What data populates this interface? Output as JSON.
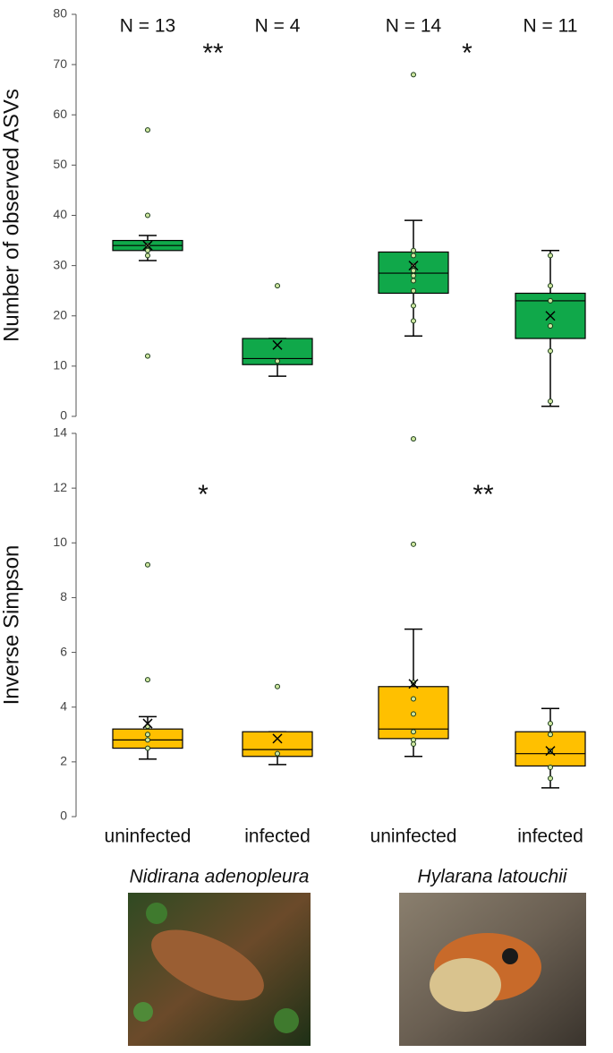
{
  "chart_data": [
    {
      "type": "box",
      "y_label": "Number of observed ASVs",
      "color": "#10a84a",
      "ylim": [
        0,
        80
      ],
      "yticks": [
        0,
        10,
        20,
        30,
        40,
        50,
        60,
        70,
        80
      ],
      "n_labels": [
        "N = 13",
        "N = 4",
        "N = 14",
        "N = 11"
      ],
      "significance": [
        "**",
        "*"
      ],
      "boxes": [
        {
          "whislo": 31,
          "q1": 33,
          "med": 34,
          "q3": 35,
          "whishi": 36,
          "mean": 34,
          "points": [
            57,
            40,
            34,
            33,
            32,
            12
          ]
        },
        {
          "whislo": 8,
          "q1": 10.3,
          "med": 11.5,
          "q3": 15.5,
          "whishi": 15.5,
          "mean": 14.2,
          "points": [
            26,
            11
          ]
        },
        {
          "whislo": 16,
          "q1": 24.5,
          "med": 28.5,
          "q3": 32.7,
          "whishi": 39,
          "mean": 30,
          "points": [
            68,
            33,
            32,
            30,
            29,
            28,
            27,
            25,
            22,
            19
          ]
        },
        {
          "whislo": 2,
          "q1": 15.5,
          "med": 23,
          "q3": 24.5,
          "whishi": 33,
          "mean": 20,
          "points": [
            32,
            26,
            23,
            18,
            13,
            3
          ]
        }
      ]
    },
    {
      "type": "box",
      "y_label": "Inverse Simpson",
      "color": "#ffc000",
      "ylim": [
        0,
        14
      ],
      "yticks": [
        0,
        2,
        4,
        6,
        8,
        10,
        12,
        14
      ],
      "categories": [
        "uninfected",
        "infected",
        "uninfected",
        "infected"
      ],
      "groups": [
        "Nidirana adenopleura",
        "Hylarana latouchii"
      ],
      "significance": [
        "*",
        "**"
      ],
      "boxes": [
        {
          "whislo": 2.1,
          "q1": 2.5,
          "med": 2.8,
          "q3": 3.2,
          "whishi": 3.65,
          "mean": 3.4,
          "points": [
            9.2,
            5.0,
            3.3,
            3.0,
            2.8,
            2.5
          ]
        },
        {
          "whislo": 1.9,
          "q1": 2.2,
          "med": 2.45,
          "q3": 3.1,
          "whishi": 3.1,
          "mean": 2.85,
          "points": [
            4.75,
            2.3
          ]
        },
        {
          "whislo": 2.2,
          "q1": 2.85,
          "med": 3.2,
          "q3": 4.75,
          "whishi": 6.85,
          "mean": 4.85,
          "points": [
            13.8,
            9.95,
            4.9,
            4.3,
            3.75,
            3.1,
            2.8,
            2.65
          ]
        },
        {
          "whislo": 1.05,
          "q1": 1.85,
          "med": 2.3,
          "q3": 3.1,
          "whishi": 3.95,
          "mean": 2.4,
          "points": [
            3.4,
            3.0,
            2.4,
            1.8,
            1.4
          ]
        }
      ]
    }
  ]
}
